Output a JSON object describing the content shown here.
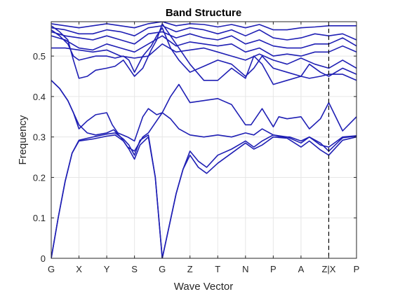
{
  "chart_data": {
    "type": "line",
    "title": "Band Structure",
    "xlabel": "Wave Vector",
    "ylabel": "Frequency",
    "ylim": [
      0,
      0.585
    ],
    "xlim": [
      0,
      11
    ],
    "x_ticks": [
      {
        "pos": 0,
        "label": "G"
      },
      {
        "pos": 1,
        "label": "X"
      },
      {
        "pos": 2,
        "label": "Y"
      },
      {
        "pos": 3,
        "label": "S"
      },
      {
        "pos": 4,
        "label": "G"
      },
      {
        "pos": 5,
        "label": "Z"
      },
      {
        "pos": 6,
        "label": "T"
      },
      {
        "pos": 7,
        "label": "N"
      },
      {
        "pos": 8,
        "label": "P"
      },
      {
        "pos": 9,
        "label": "A"
      },
      {
        "pos": 10,
        "label": "Z|X"
      },
      {
        "pos": 11,
        "label": "P"
      }
    ],
    "y_ticks": [
      0,
      0.1,
      0.2,
      0.3,
      0.4,
      0.5
    ],
    "y_tick_labels": [
      "0",
      "0.1",
      "0.2",
      "0.3",
      "0.4",
      "0.5"
    ],
    "discontinuity_at": 10,
    "grid": true,
    "line_color": "#1f1fb4",
    "series": [
      {
        "x": [
          0,
          0.25,
          0.5,
          0.75,
          1,
          1.5,
          2,
          2.3,
          2.6,
          2.8,
          3,
          3.2,
          3.5,
          3.75,
          4,
          4.25,
          4.5,
          4.75,
          5,
          5.3,
          5.6,
          6,
          6.5,
          7,
          7.3,
          7.6,
          8,
          8.5,
          9,
          9.3,
          9.7,
          10,
          10.5,
          11
        ],
        "y": [
          0,
          0.1,
          0.19,
          0.26,
          0.29,
          0.295,
          0.302,
          0.305,
          0.29,
          0.27,
          0.245,
          0.28,
          0.3,
          0.2,
          0.0,
          0.08,
          0.16,
          0.22,
          0.255,
          0.225,
          0.21,
          0.235,
          0.26,
          0.285,
          0.27,
          0.28,
          0.3,
          0.297,
          0.275,
          0.29,
          0.268,
          0.255,
          0.292,
          0.3
        ]
      },
      {
        "x": [
          0,
          0.25,
          0.5,
          0.75,
          1,
          1.5,
          2,
          2.3,
          2.6,
          2.8,
          3,
          3.2,
          3.5,
          3.75,
          4,
          4.25,
          4.5,
          4.75,
          5,
          5.3,
          5.6,
          6,
          6.5,
          7,
          7.3,
          7.6,
          8,
          8.5,
          9,
          9.3,
          9.7,
          10,
          10.5,
          11
        ],
        "y": [
          0,
          0.1,
          0.19,
          0.26,
          0.292,
          0.3,
          0.307,
          0.31,
          0.295,
          0.28,
          0.255,
          0.292,
          0.305,
          0.2,
          0.0,
          0.08,
          0.16,
          0.22,
          0.265,
          0.24,
          0.225,
          0.255,
          0.27,
          0.29,
          0.275,
          0.29,
          0.305,
          0.3,
          0.285,
          0.3,
          0.285,
          0.265,
          0.298,
          0.302
        ]
      },
      {
        "x": [
          0,
          0.3,
          0.6,
          0.8,
          1,
          1.3,
          1.6,
          2,
          2.25,
          2.5,
          2.75,
          3,
          3.3,
          3.5,
          3.7,
          4,
          4.3,
          4.6,
          5,
          5.5,
          6,
          6.5,
          7,
          7.3,
          7.6,
          8,
          8.3,
          8.6,
          9,
          9.3,
          9.7,
          10,
          10.5,
          11
        ],
        "y": [
          0.44,
          0.42,
          0.39,
          0.36,
          0.33,
          0.31,
          0.305,
          0.31,
          0.318,
          0.3,
          0.275,
          0.265,
          0.3,
          0.31,
          0.33,
          0.36,
          0.345,
          0.32,
          0.305,
          0.3,
          0.305,
          0.3,
          0.31,
          0.305,
          0.32,
          0.305,
          0.3,
          0.3,
          0.29,
          0.3,
          0.28,
          0.275,
          0.3,
          0.303
        ]
      },
      {
        "x": [
          0,
          0.3,
          0.6,
          0.8,
          1,
          1.3,
          1.6,
          2,
          2.2,
          2.4,
          2.75,
          3,
          3.3,
          3.5,
          3.8,
          4,
          4.3,
          4.6,
          5,
          5.5,
          6,
          6.5,
          7,
          7.2,
          7.6,
          8,
          8.2,
          8.5,
          9,
          9.3,
          9.7,
          10,
          10.5,
          11
        ],
        "y": [
          0.44,
          0.42,
          0.39,
          0.36,
          0.32,
          0.34,
          0.355,
          0.36,
          0.33,
          0.31,
          0.3,
          0.29,
          0.35,
          0.37,
          0.355,
          0.36,
          0.4,
          0.43,
          0.385,
          0.39,
          0.395,
          0.38,
          0.33,
          0.33,
          0.37,
          0.325,
          0.35,
          0.345,
          0.35,
          0.32,
          0.345,
          0.385,
          0.315,
          0.35
        ]
      },
      {
        "x": [
          0,
          0.3,
          0.6,
          0.8,
          1,
          1.3,
          1.6,
          2,
          2.3,
          2.6,
          2.8,
          3,
          3.3,
          3.6,
          3.8,
          4,
          4.3,
          4.6,
          5,
          5.5,
          6,
          6.5,
          7,
          7.3,
          7.6,
          8,
          8.5,
          9,
          9.3,
          9.7,
          10,
          10.5,
          11
        ],
        "y": [
          0.575,
          0.56,
          0.54,
          0.49,
          0.445,
          0.45,
          0.465,
          0.47,
          0.475,
          0.49,
          0.47,
          0.45,
          0.47,
          0.515,
          0.54,
          0.58,
          0.55,
          0.52,
          0.48,
          0.44,
          0.44,
          0.47,
          0.445,
          0.5,
          0.48,
          0.43,
          0.44,
          0.45,
          0.445,
          0.45,
          0.455,
          0.455,
          0.44
        ]
      },
      {
        "x": [
          0,
          0.3,
          0.6,
          0.8,
          1,
          1.3,
          1.6,
          2,
          2.3,
          2.6,
          2.8,
          3,
          3.3,
          3.6,
          3.8,
          4,
          4.3,
          4.6,
          5,
          5.5,
          6,
          6.5,
          7,
          7.3,
          7.6,
          8,
          8.5,
          9,
          9.3,
          9.7,
          10,
          10.5,
          11
        ],
        "y": [
          0.565,
          0.55,
          0.53,
          0.5,
          0.49,
          0.495,
          0.5,
          0.5,
          0.495,
          0.5,
          0.49,
          0.46,
          0.5,
          0.525,
          0.55,
          0.57,
          0.52,
          0.49,
          0.46,
          0.475,
          0.49,
          0.48,
          0.45,
          0.47,
          0.5,
          0.47,
          0.46,
          0.45,
          0.48,
          0.46,
          0.45,
          0.47,
          0.455
        ]
      },
      {
        "x": [
          0,
          0.5,
          1,
          1.5,
          2,
          2.5,
          3,
          3.5,
          4,
          4.5,
          5,
          5.5,
          6,
          6.5,
          7,
          7.5,
          8,
          8.5,
          9,
          9.5,
          10,
          10.5,
          11
        ],
        "y": [
          0.52,
          0.52,
          0.515,
          0.51,
          0.515,
          0.5,
          0.495,
          0.5,
          0.53,
          0.51,
          0.515,
          0.52,
          0.51,
          0.5,
          0.49,
          0.505,
          0.49,
          0.48,
          0.495,
          0.48,
          0.47,
          0.49,
          0.47
        ]
      },
      {
        "x": [
          0,
          0.5,
          1,
          1.5,
          2,
          2.5,
          3,
          3.5,
          4,
          4.5,
          5,
          5.5,
          6,
          6.5,
          7,
          7.5,
          8,
          8.5,
          9,
          9.5,
          10,
          10.5,
          11
        ],
        "y": [
          0.55,
          0.54,
          0.52,
          0.515,
          0.53,
          0.52,
          0.51,
          0.53,
          0.55,
          0.525,
          0.535,
          0.53,
          0.525,
          0.53,
          0.51,
          0.52,
          0.5,
          0.505,
          0.5,
          0.51,
          0.51,
          0.525,
          0.51
        ]
      },
      {
        "x": [
          0,
          0.5,
          1,
          1.5,
          2,
          2.5,
          3,
          3.5,
          4,
          4.5,
          5,
          5.5,
          6,
          6.5,
          7,
          7.5,
          8,
          8.5,
          9,
          9.5,
          10,
          10.5,
          11
        ],
        "y": [
          0.56,
          0.55,
          0.545,
          0.54,
          0.55,
          0.54,
          0.53,
          0.555,
          0.56,
          0.545,
          0.555,
          0.545,
          0.54,
          0.55,
          0.53,
          0.54,
          0.525,
          0.52,
          0.52,
          0.53,
          0.53,
          0.545,
          0.525
        ]
      },
      {
        "x": [
          0,
          0.5,
          1,
          1.5,
          2,
          2.5,
          3,
          3.5,
          4,
          4.5,
          5,
          5.5,
          6,
          6.5,
          7,
          7.5,
          8,
          8.5,
          9,
          9.5,
          10,
          10.5,
          11
        ],
        "y": [
          0.57,
          0.565,
          0.555,
          0.555,
          0.565,
          0.56,
          0.55,
          0.57,
          0.575,
          0.56,
          0.57,
          0.565,
          0.555,
          0.565,
          0.55,
          0.565,
          0.545,
          0.54,
          0.545,
          0.555,
          0.55,
          0.555,
          0.54
        ]
      },
      {
        "x": [
          0,
          0.5,
          1,
          1.5,
          2,
          2.5,
          3,
          3.5,
          4,
          4.5,
          5,
          5.5,
          6,
          6.5,
          7,
          7.5,
          8,
          8.5,
          9,
          9.5,
          10,
          10.5,
          11
        ],
        "y": [
          0.58,
          0.575,
          0.57,
          0.575,
          0.58,
          0.575,
          0.57,
          0.58,
          0.585,
          0.575,
          0.58,
          0.578,
          0.572,
          0.578,
          0.57,
          0.578,
          0.565,
          0.565,
          0.57,
          0.572,
          0.575,
          0.575,
          0.575
        ]
      }
    ]
  }
}
